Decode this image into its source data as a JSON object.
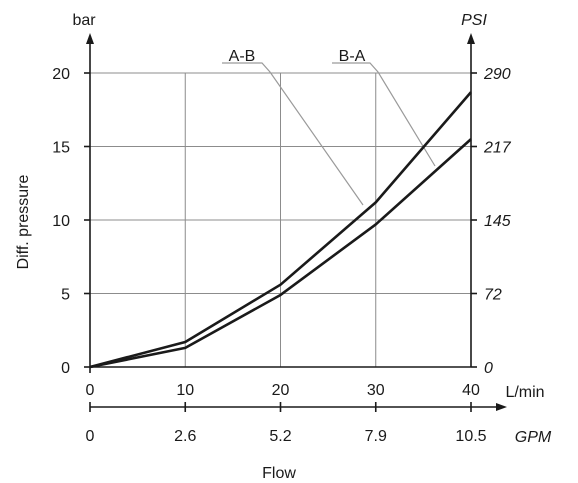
{
  "chart_data": {
    "type": "line",
    "xlabel": "Flow",
    "left_axis_unit": "bar",
    "right_axis_unit": "PSI",
    "ylabel": "Diff. pressure",
    "x_unit_primary": "L/min",
    "x_unit_secondary": "GPM",
    "x_ticks": [
      0,
      10,
      20,
      30,
      40
    ],
    "x_secondary_tick_labels": [
      "0",
      "2.6",
      "5.2",
      "7.9",
      "10.5"
    ],
    "y_ticks": [
      0,
      5,
      10,
      15,
      20
    ],
    "y_right_tick_labels": [
      "0",
      "72",
      "145",
      "217",
      "290"
    ],
    "xlim": [
      0,
      40
    ],
    "ylim": [
      0,
      20
    ],
    "grid": true,
    "series": [
      {
        "name": "A-B",
        "x": [
          0,
          10,
          20,
          30,
          40
        ],
        "values": [
          0,
          1.7,
          5.6,
          11.2,
          18.7
        ]
      },
      {
        "name": "B-A",
        "x": [
          0,
          10,
          20,
          30,
          40
        ],
        "values": [
          0,
          1.3,
          4.9,
          9.7,
          15.5
        ]
      }
    ]
  }
}
